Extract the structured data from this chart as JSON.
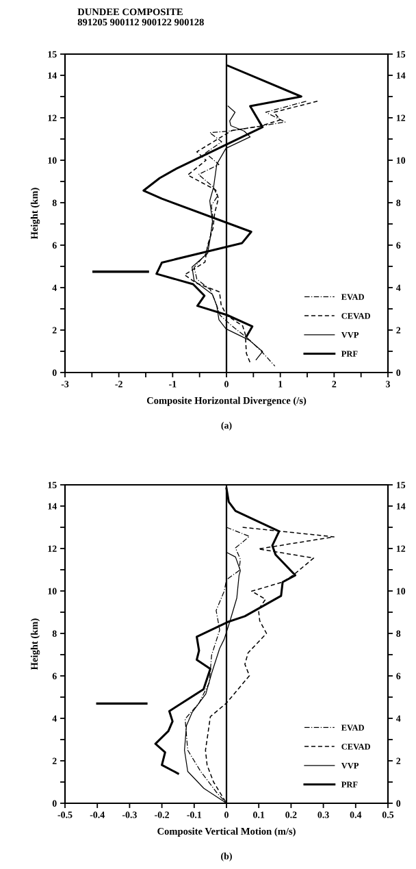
{
  "chart_data": [
    {
      "type": "line",
      "title": "DUNDEE COMPOSITE",
      "subtitle": "891205 900112 900122 900128",
      "xlabel": "Composite Horizontal Divergence (/s)",
      "ylabel": "Height (km)",
      "annotations": [
        "(a)"
      ],
      "xlim": [
        -3,
        3
      ],
      "xticks": [
        -3,
        {
          "value": -2.5,
          "label": null
        },
        -2,
        {
          "value": -1.5,
          "label": null
        },
        -1,
        {
          "value": -0.5,
          "label": null
        },
        0,
        {
          "value": 0.5,
          "label": null
        },
        1,
        {
          "value": 1.5,
          "label": null
        },
        2,
        {
          "value": 2.5,
          "label": null
        },
        3
      ],
      "ylim": [
        0,
        15
      ],
      "yticks": [
        0,
        {
          "value": 1,
          "label": null
        },
        2,
        {
          "value": 3,
          "label": null
        },
        4,
        {
          "value": 5,
          "label": null
        },
        6,
        {
          "value": 7,
          "label": null
        },
        8,
        {
          "value": 9,
          "label": null
        },
        10,
        {
          "value": 11,
          "label": null
        },
        12,
        {
          "value": 13,
          "label": null
        },
        14,
        15
      ],
      "y2lim": [
        0,
        15
      ],
      "y2ticks": [
        0,
        {
          "value": 1,
          "label": null
        },
        2,
        {
          "value": 3,
          "label": null
        },
        4,
        {
          "value": 5,
          "label": null
        },
        6,
        {
          "value": 7,
          "label": null
        },
        8,
        {
          "value": 9,
          "label": null
        },
        10,
        {
          "value": 11,
          "label": null
        },
        12,
        {
          "value": 13,
          "label": null
        },
        14,
        15
      ],
      "ref_lines": [
        {
          "axis": "x",
          "value": 0,
          "color": "#000000",
          "line_style": "solid"
        }
      ],
      "grid": false,
      "legend": "bottom right",
      "marker": "none",
      "series": [
        {
          "name": "EVAD",
          "color": "#000000",
          "line_style": "dashdot",
          "x": [
            1.48,
            0.73,
            1.09,
            0.04,
            -0.31,
            -0.09,
            -0.39,
            -0.14,
            -0.52,
            -0.24,
            -0.17,
            -0.28,
            -0.25,
            -0.3,
            -0.38,
            -0.6,
            -0.55,
            -0.3,
            -0.2,
            -0.12,
            0.1,
            0.4,
            0.65,
            0.9
          ],
          "values": [
            12.78,
            12.26,
            11.8,
            11.37,
            11.3,
            10.87,
            10.34,
            9.8,
            9.33,
            8.73,
            8.3,
            7.87,
            7.2,
            6.4,
            5.6,
            4.95,
            4.4,
            3.9,
            3.3,
            2.7,
            2.2,
            1.6,
            1.0,
            0.3
          ]
        },
        {
          "name": "CEVAD",
          "color": "#000000",
          "line_style": "dashed",
          "x": [
            1.69,
            0.88,
            1.0,
            0.62,
            0.1,
            -0.55,
            -0.38,
            -0.72,
            -0.2,
            -0.15,
            -0.22,
            -0.25,
            -0.35,
            -0.4,
            -0.78,
            -0.55,
            -0.13,
            -0.1,
            0.0,
            0.3,
            0.35,
            0.37,
            0.45
          ],
          "values": [
            12.78,
            12.26,
            11.9,
            11.6,
            11.4,
            10.4,
            10.0,
            9.3,
            8.6,
            8.2,
            7.5,
            6.8,
            6.0,
            5.2,
            4.6,
            4.2,
            3.8,
            3.2,
            2.7,
            2.2,
            1.8,
            0.9,
            0.4
          ]
        },
        {
          "name": "VVP",
          "color": "#000000",
          "line_style": "solid",
          "x": [
            0.03,
            0.16,
            0.06,
            0.08,
            0.33,
            0.44,
            -0.01,
            -0.18,
            -0.24,
            -0.31,
            -0.3,
            -0.26,
            -0.3,
            -0.35,
            -0.64,
            -0.6,
            -0.26,
            -0.18,
            -0.14,
            -0.01,
            0.42,
            0.67,
            0.55
          ],
          "values": [
            12.55,
            12.26,
            11.85,
            11.63,
            11.37,
            11.1,
            10.56,
            9.81,
            8.73,
            8.09,
            7.87,
            7.12,
            6.37,
            5.61,
            4.97,
            4.32,
            3.68,
            3.14,
            2.49,
            2.06,
            1.53,
            0.99,
            0.6
          ]
        },
        {
          "name": "PRF",
          "color": "#000000",
          "line_style": "solid",
          "x": [
            0.03,
            1.39,
            0.44,
            0.67,
            -0.94,
            -1.24,
            -1.54,
            -1.2,
            -1.03,
            0.46,
            0.29,
            -1.2,
            -1.3,
            -0.62,
            -0.41,
            -0.54,
            0.01,
            0.48,
            0.37
          ],
          "values": [
            14.45,
            13.0,
            12.55,
            11.56,
            9.59,
            9.16,
            8.57,
            8.19,
            8.03,
            6.63,
            6.1,
            5.18,
            4.65,
            4.16,
            3.62,
            3.14,
            2.71,
            2.17,
            1.69
          ]
        },
        {
          "color": "#000000",
          "line_style": "solid",
          "x": [
            -2.47,
            -1.46
          ],
          "values": [
            4.75,
            4.75
          ]
        }
      ]
    },
    {
      "type": "line",
      "xlabel": "Composite Vertical Motion (m/s)",
      "ylabel": "Height (km)",
      "annotations": [
        "(b)"
      ],
      "xlim": [
        -0.5,
        0.5
      ],
      "xticks": [
        -0.5,
        -0.4,
        -0.3,
        -0.2,
        -0.1,
        0,
        0.1,
        0.2,
        0.3,
        0.4,
        0.5
      ],
      "ylim": [
        0,
        15
      ],
      "yticks": [
        0,
        {
          "value": 1,
          "label": null
        },
        2,
        {
          "value": 3,
          "label": null
        },
        4,
        {
          "value": 5,
          "label": null
        },
        6,
        {
          "value": 7,
          "label": null
        },
        8,
        {
          "value": 9,
          "label": null
        },
        10,
        {
          "value": 11,
          "label": null
        },
        12,
        {
          "value": 13,
          "label": null
        },
        14,
        15
      ],
      "y2lim": [
        0,
        15
      ],
      "y2ticks": [
        0,
        {
          "value": 1,
          "label": null
        },
        2,
        {
          "value": 3,
          "label": null
        },
        4,
        {
          "value": 5,
          "label": null
        },
        6,
        {
          "value": 7,
          "label": null
        },
        8,
        {
          "value": 9,
          "label": null
        },
        10,
        {
          "value": 11,
          "label": null
        },
        12,
        {
          "value": 13,
          "label": null
        },
        14,
        15
      ],
      "ref_lines": [
        {
          "axis": "x",
          "value": 0,
          "color": "#000000",
          "line_style": "solid"
        }
      ],
      "grid": false,
      "legend": "bottom right",
      "marker": "none",
      "series": [
        {
          "name": "EVAD",
          "color": "#000000",
          "line_style": "dashdot",
          "x": [
            0.0,
            0.071,
            0.028,
            0.043,
            0.039,
            0.0,
            -0.007,
            -0.032,
            -0.021,
            -0.046,
            -0.053,
            -0.085,
            -0.128,
            -0.12,
            -0.08,
            -0.03,
            0.0
          ],
          "values": [
            13.0,
            12.57,
            12.03,
            11.49,
            10.96,
            10.53,
            9.99,
            9.08,
            8.16,
            6.98,
            5.69,
            4.72,
            3.97,
            2.5,
            1.5,
            0.5,
            0.0
          ]
        },
        {
          "name": "CEVAD",
          "color": "#000000",
          "line_style": "dashed",
          "x": [
            0.05,
            0.333,
            0.099,
            0.27,
            0.206,
            0.174,
            0.078,
            0.121,
            0.099,
            0.103,
            0.124,
            0.067,
            0.057,
            0.071,
            0.0,
            -0.05,
            -0.057,
            -0.065,
            -0.06,
            -0.04,
            0.0
          ],
          "values": [
            13.0,
            12.55,
            11.98,
            11.55,
            10.74,
            10.42,
            9.99,
            9.61,
            9.13,
            8.59,
            8.0,
            7.09,
            6.55,
            6.01,
            4.72,
            4.08,
            3.32,
            2.5,
            1.8,
            1.0,
            0.0
          ]
        },
        {
          "name": "VVP",
          "color": "#000000",
          "line_style": "solid",
          "x": [
            0.0,
            0.028,
            0.043,
            0.039,
            0.032,
            0.011,
            -0.007,
            -0.021,
            -0.046,
            -0.064,
            -0.106,
            -0.124,
            -0.13,
            -0.12,
            -0.07,
            0.0
          ],
          "values": [
            11.82,
            11.6,
            10.96,
            10.74,
            9.67,
            8.59,
            7.73,
            7.3,
            6.12,
            5.15,
            4.29,
            3.65,
            2.5,
            1.5,
            0.7,
            0.0
          ]
        },
        {
          "name": "PRF",
          "color": "#000000",
          "line_style": "solid",
          "x": [
            0.0,
            0.007,
            0.028,
            0.163,
            0.142,
            0.152,
            0.213,
            0.174,
            0.169,
            0.057,
            0.004,
            -0.092,
            -0.085,
            -0.092,
            -0.05,
            -0.071,
            -0.177,
            -0.167,
            -0.18,
            -0.22,
            -0.19,
            -0.2,
            -0.15
          ],
          "values": [
            14.83,
            14.2,
            13.77,
            12.81,
            12.14,
            11.71,
            10.74,
            10.42,
            9.77,
            8.81,
            8.54,
            7.84,
            7.19,
            6.76,
            6.33,
            5.37,
            4.34,
            3.86,
            3.4,
            2.8,
            2.4,
            1.8,
            1.4
          ]
        },
        {
          "color": "#000000",
          "line_style": "solid",
          "x": [
            -0.4,
            -0.248
          ],
          "values": [
            4.7,
            4.7
          ]
        }
      ]
    }
  ]
}
